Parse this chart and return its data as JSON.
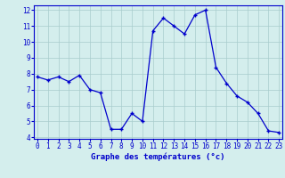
{
  "hours": [
    0,
    1,
    2,
    3,
    4,
    5,
    6,
    7,
    8,
    9,
    10,
    11,
    12,
    13,
    14,
    15,
    16,
    17,
    18,
    19,
    20,
    21,
    22,
    23
  ],
  "temps": [
    7.8,
    7.6,
    7.8,
    7.5,
    7.9,
    7.0,
    6.8,
    4.5,
    4.5,
    5.5,
    5.0,
    10.7,
    11.5,
    11.0,
    10.5,
    11.7,
    12.0,
    8.4,
    7.4,
    6.6,
    6.2,
    5.5,
    4.4,
    4.3
  ],
  "line_color": "#0000cc",
  "marker": "+",
  "bg_color": "#d4eeed",
  "grid_color": "#a8cccc",
  "axis_color": "#0000cc",
  "xlabel": "Graphe des températures (°c)",
  "ylim_min": 4,
  "ylim_max": 12,
  "xlim_min": 0,
  "xlim_max": 23,
  "yticks": [
    4,
    5,
    6,
    7,
    8,
    9,
    10,
    11,
    12
  ],
  "xticks": [
    0,
    1,
    2,
    3,
    4,
    5,
    6,
    7,
    8,
    9,
    10,
    11,
    12,
    13,
    14,
    15,
    16,
    17,
    18,
    19,
    20,
    21,
    22,
    23
  ],
  "label_fontsize": 6.5,
  "tick_fontsize": 5.5,
  "fig_width": 3.2,
  "fig_height": 2.0,
  "dpi": 100
}
